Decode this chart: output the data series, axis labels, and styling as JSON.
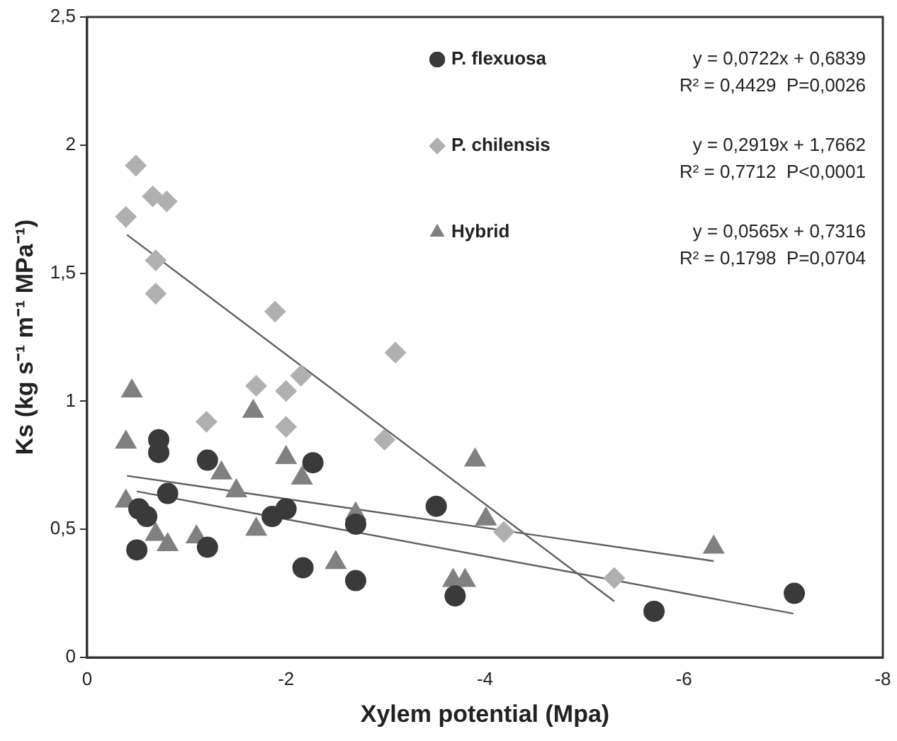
{
  "chart_data": {
    "type": "scatter",
    "xlabel": "Xylem potential (Mpa)",
    "ylabel": "Ks (kg s⁻¹ m⁻¹ MPa⁻¹)",
    "xlim": [
      0,
      -8
    ],
    "xticks": [
      0,
      -2,
      -4,
      -6,
      -8
    ],
    "ylim": [
      0,
      2.5
    ],
    "yticks": [
      0,
      {
        "value": 0.5,
        "label": "0,5"
      },
      1,
      {
        "value": 1.5,
        "label": "1,5"
      },
      2,
      {
        "value": 2.5,
        "label": "2,5"
      }
    ],
    "grid": false,
    "legend": "top right",
    "annotations": [
      "y = 0,0722x + 0,6839",
      "R² = 0,4429  P=0,0026",
      "y = 0,2919x + 1,7662",
      "R² = 0,7712  P<0,0001",
      "y = 0,0565x + 0,7316",
      "R² = 0,1798  P=0,0704"
    ],
    "series": [
      {
        "name": "P. flexuosa",
        "color": "#3a3a3a",
        "marker": "circle",
        "x": [
          -0.72,
          -0.72,
          -0.5,
          -0.6,
          -0.52,
          -0.81,
          -1.21,
          -1.21,
          -1.86,
          -2.0,
          -2.27,
          -2.17,
          -2.7,
          -2.7,
          -3.51,
          -3.7,
          -5.7,
          -7.11
        ],
        "values": [
          0.85,
          0.8,
          0.42,
          0.55,
          0.58,
          0.64,
          0.77,
          0.43,
          0.55,
          0.58,
          0.76,
          0.35,
          0.3,
          0.52,
          0.59,
          0.24,
          0.18,
          0.25
        ]
      },
      {
        "name": "P. chilensis",
        "color": "#b0b0b0",
        "marker": "diamond",
        "x": [
          -0.49,
          -0.39,
          -0.66,
          -0.8,
          -0.69,
          -0.69,
          -1.89,
          -1.2,
          -1.7,
          -2.0,
          -2.0,
          -2.15,
          -3.1,
          -2.99,
          -4.19,
          -5.3
        ],
        "values": [
          1.92,
          1.72,
          1.8,
          1.78,
          1.55,
          1.42,
          1.35,
          0.92,
          1.06,
          1.04,
          0.9,
          1.1,
          1.19,
          0.85,
          0.49,
          0.31
        ]
      },
      {
        "name": "Hybrid",
        "color": "#808080",
        "marker": "triangle",
        "x": [
          -0.45,
          -0.39,
          -0.39,
          -0.69,
          -0.81,
          -1.1,
          -1.35,
          -1.5,
          -1.67,
          -1.7,
          -2.0,
          -2.16,
          -2.5,
          -2.7,
          -3.68,
          -3.8,
          -3.9,
          -4.01,
          -6.3
        ],
        "values": [
          1.04,
          0.84,
          0.61,
          0.48,
          0.44,
          0.47,
          0.72,
          0.65,
          0.96,
          0.5,
          0.78,
          0.7,
          0.37,
          0.56,
          0.3,
          0.3,
          0.77,
          0.54,
          0.43
        ]
      },
      {
        "type": "line",
        "color": "#606060",
        "marker": "none",
        "x": [
          -0.5,
          -7.1
        ],
        "values": [
          0.648,
          0.171
        ]
      },
      {
        "type": "line",
        "color": "#606060",
        "marker": "none",
        "x": [
          -0.4,
          -5.3
        ],
        "values": [
          1.65,
          0.219
        ]
      },
      {
        "type": "line",
        "color": "#606060",
        "marker": "none",
        "x": [
          -0.4,
          -6.3
        ],
        "values": [
          0.709,
          0.376
        ]
      }
    ]
  }
}
